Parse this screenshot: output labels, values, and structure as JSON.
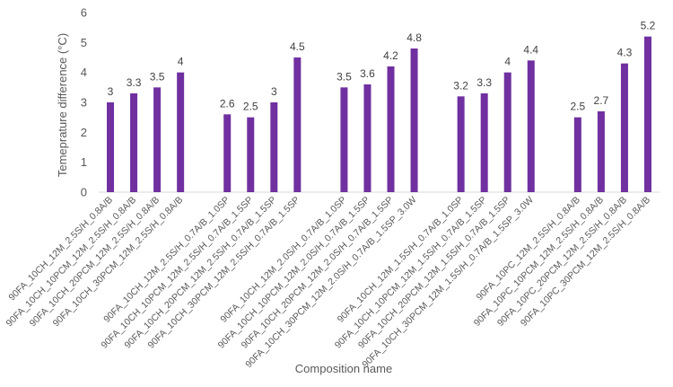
{
  "chart_data": {
    "type": "bar",
    "xlabel": "Composition name",
    "ylabel": "Temeprature difference (°C)",
    "ylim": [
      0,
      6
    ],
    "yticks": [
      0,
      1,
      2,
      3,
      4,
      5,
      6
    ],
    "grid": false,
    "legend": "none",
    "bar_color": "#7030A0",
    "groups": [
      {
        "categories": [
          "90FA_10CH_12M_2.5S/H_0.8A/B",
          "90FA_10CH_10PCM_12M_2.5S/H_0.8A/B",
          "90FA_10CH_20PCM_12M_2.5S/H_0.8A/B",
          "90FA_10CH_30PCM_12M_2.5S/H_0.8A/B"
        ],
        "values": [
          3,
          3.3,
          3.5,
          4
        ]
      },
      {
        "categories": [
          "90FA_10CH_12M_2.5S/H_0.7A/B_1.0SP",
          "90FA_10CH_10PCM_12M_2.5S/H_0.7A/B_1.5SP",
          "90FA_10CH_20PCM_12M_2.5S/H_0.7A/B_1.5SP",
          "90FA_10CH_30PCM_12M_2.5S/H_0.7A/B_1.5SP"
        ],
        "values": [
          2.6,
          2.5,
          3,
          4.5
        ]
      },
      {
        "categories": [
          "90FA_10CH_12M_2.0S/H_0.7A/B_1.0SP",
          "90FA_10CH_10PCM_12M_2.0S/H_0.7A/B_1.5SP",
          "90FA_10CH_20PCM_12M_2.0S/H_0.7A/B_1.5SP",
          "90FA_10CH_30PCM_12M_2.0S/H_0.7A/B_1.5SP_3.0W"
        ],
        "values": [
          3.5,
          3.6,
          4.2,
          4.8
        ]
      },
      {
        "categories": [
          "90FA_10CH_12M_1.5S/H_0.7A/B_1.0SP",
          "90FA_10CH_10PCM_12M_1.5S/H_0.7A/B_1.5SP",
          "90FA_10CH_20PCM_12M_1.5S/H_0.7A/B_1.5SP",
          "90FA_10CH_30PCM_12M_1.5S/H_0.7A/B_1.5SP_3.0W"
        ],
        "values": [
          3.2,
          3.3,
          4,
          4.4
        ]
      },
      {
        "categories": [
          "90FA_10PC_12M_2.5S/H_0.8A/B",
          "90FA_10PC_10PCM_12M_2.5S/H_0.8A/B",
          "90FA_10PC_20PCM_12M_2.5S/H_0.8A/B",
          "90FA_10PC_30PCM_12M_2.5S/H_0.8A/B"
        ],
        "values": [
          2.5,
          2.7,
          4.3,
          5.2
        ]
      }
    ]
  }
}
